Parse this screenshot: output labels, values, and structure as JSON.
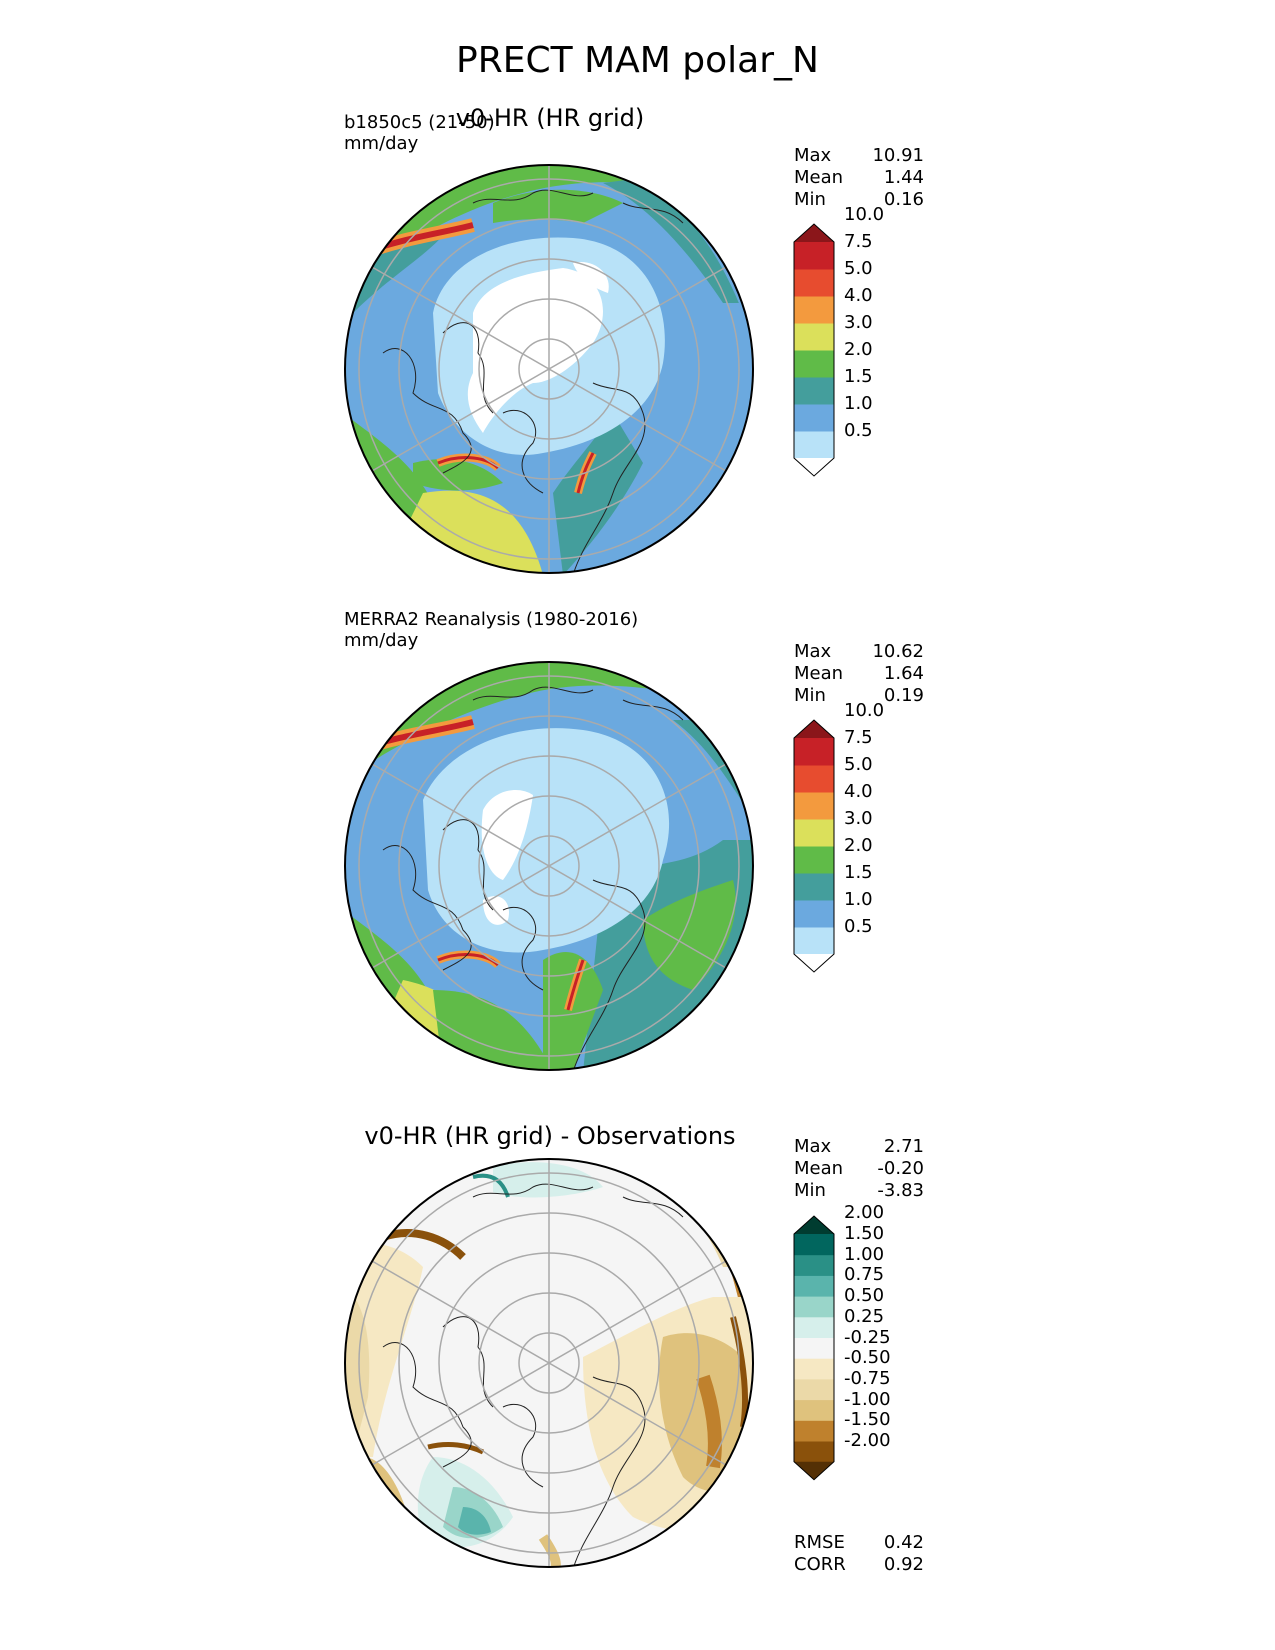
{
  "figure": {
    "title": "PRECT MAM polar_N"
  },
  "panels": [
    {
      "id": "test",
      "title": "v0-HR (HR grid)",
      "left_label_1": "b1850c5 (21-50)",
      "left_label_2": "mm/day",
      "stats": [
        {
          "label": "Max",
          "value": "10.91"
        },
        {
          "label": "Mean",
          "value": "1.44"
        },
        {
          "label": "Min",
          "value": "0.16"
        }
      ],
      "colorbar": {
        "ticks": [
          "0.5",
          "1.0",
          "1.5",
          "2.0",
          "3.0",
          "4.0",
          "5.0",
          "7.5",
          "10.0"
        ],
        "colors": [
          "#ffffff",
          "#b8e2f8",
          "#6ba9df",
          "#449e9c",
          "#60bb48",
          "#dbe05b",
          "#f39a3e",
          "#e74c2f",
          "#c72127",
          "#8b161a"
        ]
      }
    },
    {
      "id": "reference",
      "title": "",
      "left_label_1": "MERRA2 Reanalysis (1980-2016)",
      "left_label_2": "mm/day",
      "stats": [
        {
          "label": "Max",
          "value": "10.62"
        },
        {
          "label": "Mean",
          "value": "1.64"
        },
        {
          "label": "Min",
          "value": "0.19"
        }
      ],
      "colorbar": {
        "ticks": [
          "0.5",
          "1.0",
          "1.5",
          "2.0",
          "3.0",
          "4.0",
          "5.0",
          "7.5",
          "10.0"
        ],
        "colors": [
          "#ffffff",
          "#b8e2f8",
          "#6ba9df",
          "#449e9c",
          "#60bb48",
          "#dbe05b",
          "#f39a3e",
          "#e74c2f",
          "#c72127",
          "#8b161a"
        ]
      }
    },
    {
      "id": "difference",
      "title": "v0-HR (HR grid) - Observations",
      "left_label_1": "",
      "left_label_2": "",
      "stats": [
        {
          "label": "Max",
          "value": "2.71"
        },
        {
          "label": "Mean",
          "value": "-0.20"
        },
        {
          "label": "Min",
          "value": "-3.83"
        }
      ],
      "metrics": [
        {
          "label": "RMSE",
          "value": "0.42"
        },
        {
          "label": "CORR",
          "value": "0.92"
        }
      ],
      "colorbar": {
        "ticks": [
          "-2.00",
          "-1.50",
          "-1.00",
          "-0.75",
          "-0.50",
          "-0.25",
          "0.25",
          "0.50",
          "0.75",
          "1.00",
          "1.50",
          "2.00"
        ],
        "colors": [
          "#543005",
          "#8a510b",
          "#bf812d",
          "#dfc27d",
          "#ebd9a8",
          "#f6e8c3",
          "#f5f5f5",
          "#d6efeb",
          "#99d5c9",
          "#5ab4ac",
          "#2a9086",
          "#01665e",
          "#003c30"
        ]
      }
    }
  ]
}
